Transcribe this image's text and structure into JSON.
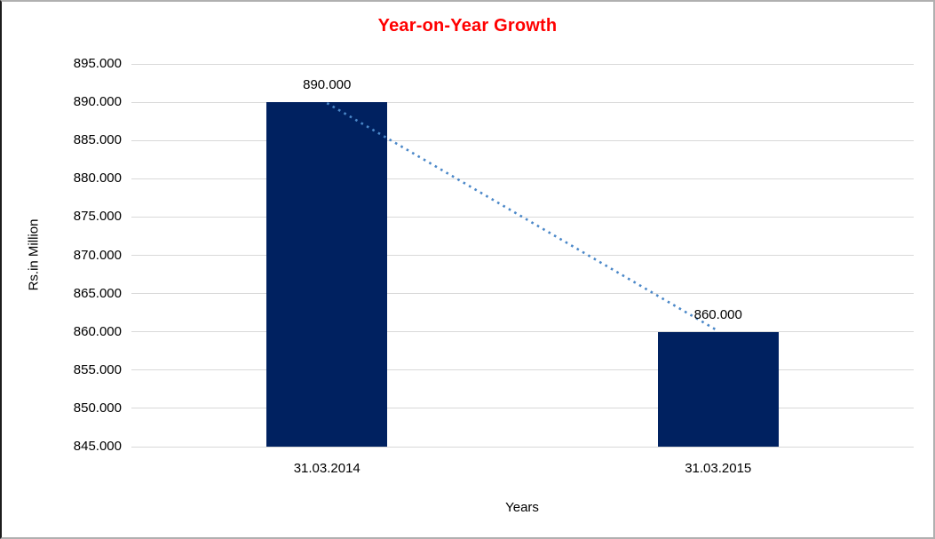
{
  "chart_data": {
    "type": "bar",
    "title": "Year-on-Year Growth",
    "title_color": "#ff0000",
    "xlabel": "Years",
    "ylabel": "Rs.in Million",
    "categories": [
      "31.03.2014",
      "31.03.2015"
    ],
    "values": [
      890000,
      860000
    ],
    "value_labels": [
      "890.000",
      "860.000"
    ],
    "ylim": [
      845000,
      895000
    ],
    "ytick_step": 5000,
    "ytick_labels": [
      "845.000",
      "850.000",
      "855.000",
      "860.000",
      "865.000",
      "870.000",
      "875.000",
      "880.000",
      "885.000",
      "890.000",
      "895.000"
    ],
    "grid": true,
    "gridline_color": "#d9d9d9",
    "bar_color": "#002160",
    "trendline": {
      "style": "dotted",
      "color": "#4a87c8",
      "from_category": "31.03.2014",
      "to_category": "31.03.2015"
    },
    "legend": "none"
  }
}
